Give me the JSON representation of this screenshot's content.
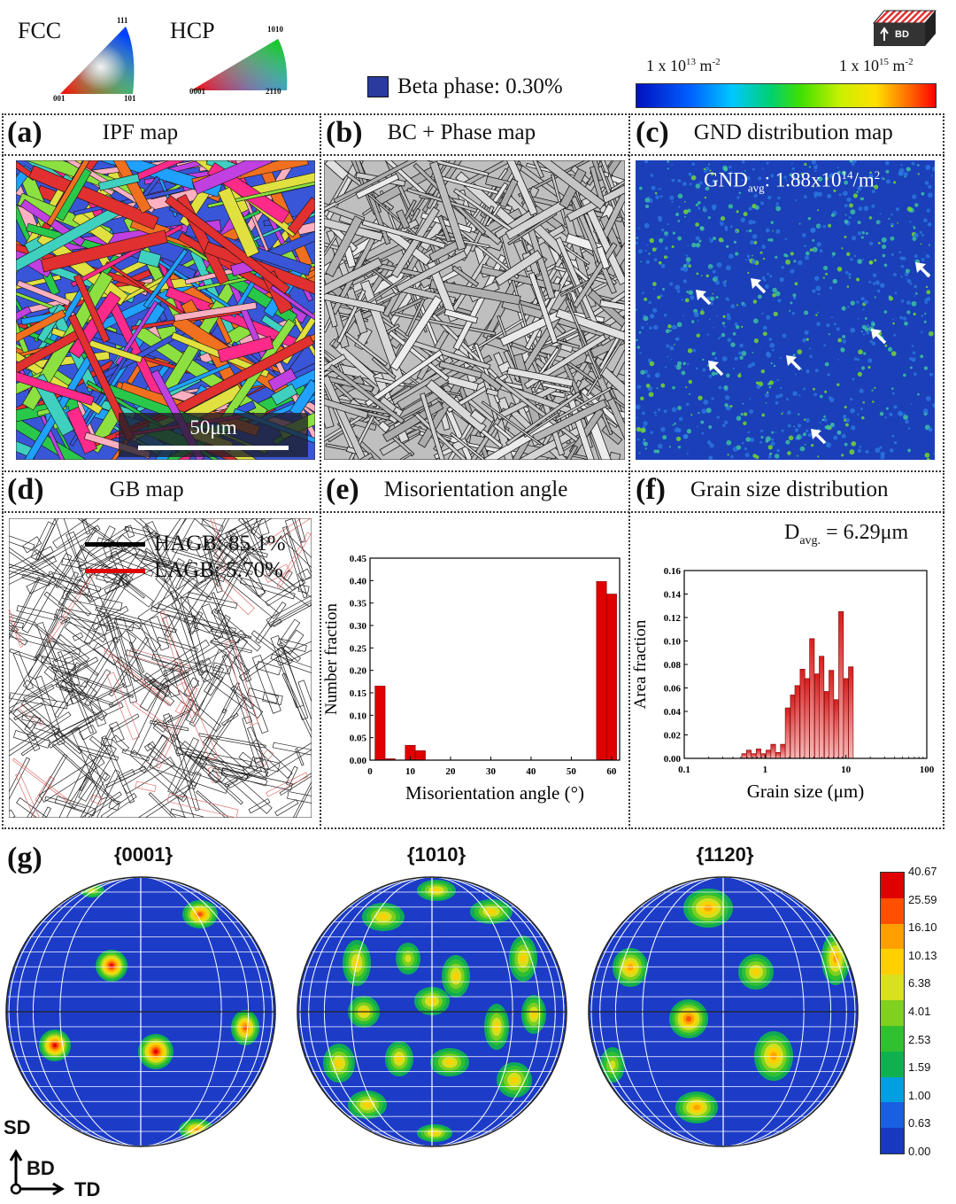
{
  "header": {
    "fcc_label": "FCC",
    "fcc_corners": {
      "top": "111",
      "left": "001",
      "right": "101"
    },
    "hcp_label": "HCP",
    "hcp_corners": {
      "top": "1010",
      "left": "0001",
      "right": "2110"
    },
    "beta_phase": "Beta phase: 0.30%",
    "beta_color": "#2b3a9e",
    "bd_label": "BD",
    "gnd_scale_min": "1 x 10",
    "gnd_scale_min_exp": "13",
    "gnd_scale_max": "1 x 10",
    "gnd_scale_max_exp": "15",
    "gnd_scale_unit": "m",
    "gnd_scale_unit_exp": "-2"
  },
  "panels": {
    "a": {
      "label": "(a)",
      "title": "IPF map",
      "scalebar": "50μm"
    },
    "b": {
      "label": "(b)",
      "title": "BC + Phase map"
    },
    "c": {
      "label": "(c)",
      "title": "GND distribution map",
      "gnd_avg_prefix": "GND",
      "gnd_avg_sub": "avg",
      "gnd_avg_value": ": 1.88x10",
      "gnd_avg_exp": "14",
      "gnd_avg_unit": "/m",
      "gnd_avg_unit_exp": "2"
    },
    "d": {
      "label": "(d)",
      "title": "GB map",
      "hagb": "HAGB: 85.1%",
      "lagb": "LAGB: 5.70%",
      "hagb_color": "#000000",
      "lagb_color": "#e00000"
    },
    "e": {
      "label": "(e)",
      "title": "Misorientation angle"
    },
    "f": {
      "label": "(f)",
      "title": "Grain size distribution",
      "davg_prefix": "D",
      "davg_sub": "avg.",
      "davg_value": " = 6.29μm"
    },
    "g": {
      "label": "(g)",
      "pf_titles": [
        "{0001}",
        "{1010}",
        "{1120}"
      ],
      "sd_label": "SD",
      "bd_label": "BD",
      "td_label": "TD",
      "colorbar_values": [
        "40.67",
        "25.59",
        "16.10",
        "10.13",
        "6.38",
        "4.01",
        "2.53",
        "1.59",
        "1.00",
        "0.63",
        "0.00"
      ]
    }
  },
  "chart_data": [
    {
      "type": "bar",
      "panel": "e",
      "xlabel": "Misorientation angle (°)",
      "ylabel": "Number fraction",
      "xlim": [
        0,
        62
      ],
      "ylim": [
        0,
        0.45
      ],
      "xticks": [
        0,
        10,
        20,
        30,
        40,
        50,
        60
      ],
      "yticks": [
        0.0,
        0.05,
        0.1,
        0.15,
        0.2,
        0.25,
        0.3,
        0.35,
        0.4,
        0.45
      ],
      "bar_width": 2.5,
      "x": [
        2.5,
        5,
        10,
        12.5,
        57.5,
        60
      ],
      "values": [
        0.165,
        0.003,
        0.033,
        0.021,
        0.398,
        0.37
      ],
      "color": "#e00000"
    },
    {
      "type": "bar",
      "panel": "f",
      "xlabel": "Grain size (μm)",
      "ylabel": "Area fraction",
      "xscale": "log",
      "xlim": [
        0.1,
        100
      ],
      "ylim": [
        0,
        0.16
      ],
      "xticks": [
        0.1,
        1,
        10,
        100
      ],
      "yticks": [
        0.0,
        0.02,
        0.04,
        0.06,
        0.08,
        0.1,
        0.12,
        0.14,
        0.16
      ],
      "x": [
        0.55,
        0.63,
        0.72,
        0.83,
        0.95,
        1.1,
        1.26,
        1.45,
        1.66,
        1.9,
        2.2,
        2.5,
        2.9,
        3.3,
        3.8,
        4.4,
        5.0,
        5.8,
        6.6,
        7.6,
        8.7,
        10.0,
        11.5,
        13.2
      ],
      "values": [
        0.004,
        0.007,
        0.004,
        0.008,
        0.004,
        0.007,
        0.012,
        0.005,
        0.012,
        0.043,
        0.054,
        0.062,
        0.076,
        0.068,
        0.102,
        0.072,
        0.087,
        0.057,
        0.075,
        0.05,
        0.125,
        0.068,
        0.078,
        0.0
      ],
      "color": "#cf1f1f"
    }
  ]
}
